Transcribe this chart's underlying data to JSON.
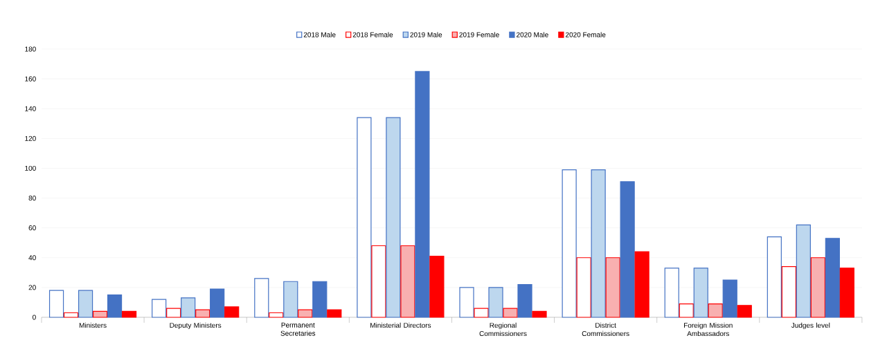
{
  "chart_data": {
    "type": "bar",
    "categories": [
      "Ministers",
      "Deputy Ministers",
      "Permanent Secretaries",
      "Ministerial Directors",
      "Regional Commissioners",
      "District Commissioners",
      "Foreign Mission Ambassadors",
      "Judges level"
    ],
    "series": [
      {
        "name": "2018 Male",
        "color": "#ffffff",
        "values": [
          18,
          12,
          26,
          134,
          20,
          99,
          33,
          54
        ]
      },
      {
        "name": "2018 Female",
        "color": "#ffffff",
        "values": [
          3,
          6,
          3,
          48,
          6,
          40,
          9,
          34
        ]
      },
      {
        "name": "2019 Male",
        "color": "#bdd7ee",
        "values": [
          18,
          13,
          24,
          134,
          20,
          99,
          33,
          62
        ]
      },
      {
        "name": "2019 Female",
        "color": "#f8b0b0",
        "values": [
          4,
          5,
          5,
          48,
          6,
          40,
          9,
          40
        ]
      },
      {
        "name": "2020 Male",
        "color": "#4472c4",
        "values": [
          15,
          19,
          24,
          165,
          22,
          91,
          25,
          53
        ]
      },
      {
        "name": "2020 Female",
        "color": "#ff0000",
        "values": [
          4,
          7,
          5,
          41,
          4,
          44,
          8,
          33
        ]
      }
    ],
    "ylim": [
      0,
      180
    ],
    "yticks": [
      0,
      20,
      40,
      60,
      80,
      100,
      120,
      140,
      160,
      180
    ],
    "grid": "y",
    "legend": "top"
  }
}
